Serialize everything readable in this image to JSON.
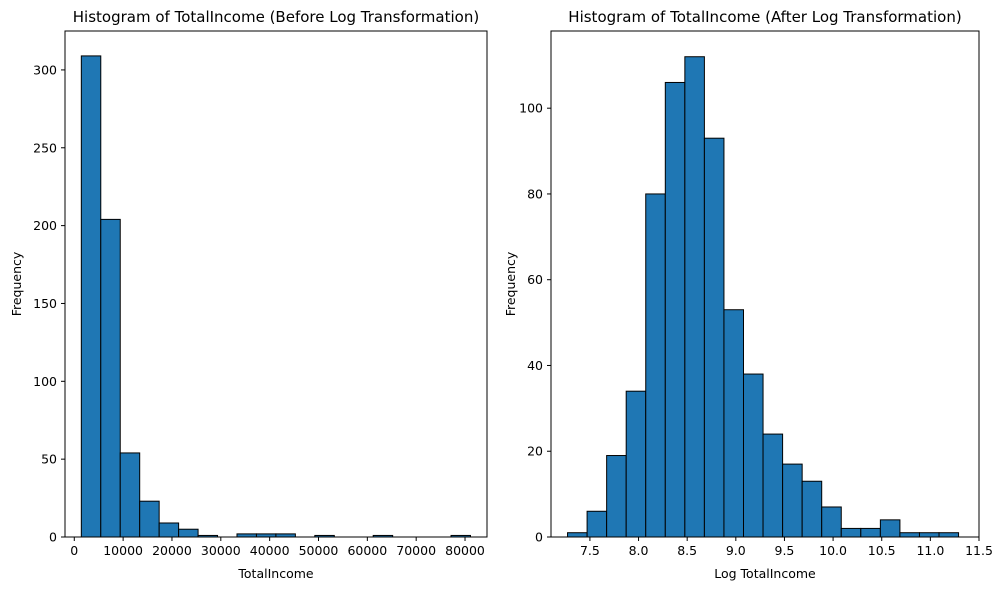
{
  "chart_data": [
    {
      "type": "bar",
      "title": "Histogram of TotalIncome (Before Log Transformation)",
      "xlabel": "TotalIncome",
      "ylabel": "Frequency",
      "xlim": [
        -1900,
        84500
      ],
      "ylim": [
        0,
        325
      ],
      "xticks": [
        0,
        10000,
        20000,
        30000,
        40000,
        50000,
        60000,
        70000,
        80000
      ],
      "xtick_labels": [
        "0",
        "10000",
        "20000",
        "30000",
        "40000",
        "50000",
        "60000",
        "70000",
        "80000"
      ],
      "yticks": [
        0,
        50,
        100,
        150,
        200,
        250,
        300
      ],
      "ytick_labels": [
        "0",
        "50",
        "100",
        "150",
        "200",
        "250",
        "300"
      ],
      "bin_edges": [
        1442,
        5426,
        9410,
        13394,
        17378,
        21362,
        25346,
        29330,
        33314,
        37298,
        41282,
        45266,
        49250,
        53234,
        57218,
        61202,
        65186,
        69170,
        73154,
        77138,
        81122
      ],
      "values": [
        309,
        204,
        54,
        23,
        9,
        5,
        1,
        0,
        2,
        2,
        2,
        0,
        1,
        0,
        0,
        1,
        0,
        0,
        0,
        1
      ],
      "bar_color": "#1f77b4",
      "edge_color": "#000000",
      "grid": false
    },
    {
      "type": "bar",
      "title": "Histogram of TotalIncome (After Log Transformation)",
      "xlabel": "Log TotalIncome",
      "ylabel": "Frequency",
      "xlim": [
        7.1,
        11.5
      ],
      "ylim": [
        0,
        118
      ],
      "xticks": [
        7.5,
        8.0,
        8.5,
        9.0,
        9.5,
        10.0,
        10.5,
        11.0,
        11.5
      ],
      "xtick_labels": [
        "7.5",
        "8.0",
        "8.5",
        "9.0",
        "9.5",
        "10.0",
        "10.5",
        "11.0",
        "11.5"
      ],
      "yticks": [
        0,
        20,
        40,
        60,
        80,
        100
      ],
      "ytick_labels": [
        "0",
        "20",
        "40",
        "60",
        "80",
        "100"
      ],
      "bin_edges": [
        7.27,
        7.471,
        7.672,
        7.873,
        8.074,
        8.275,
        8.476,
        8.677,
        8.878,
        9.079,
        9.28,
        9.481,
        9.682,
        9.883,
        10.084,
        10.285,
        10.486,
        10.687,
        10.888,
        11.089,
        11.29
      ],
      "values": [
        1,
        6,
        19,
        34,
        80,
        106,
        112,
        93,
        53,
        38,
        24,
        17,
        13,
        7,
        2,
        2,
        4,
        1,
        1,
        1
      ],
      "bar_color": "#1f77b4",
      "edge_color": "#000000",
      "grid": false
    }
  ]
}
